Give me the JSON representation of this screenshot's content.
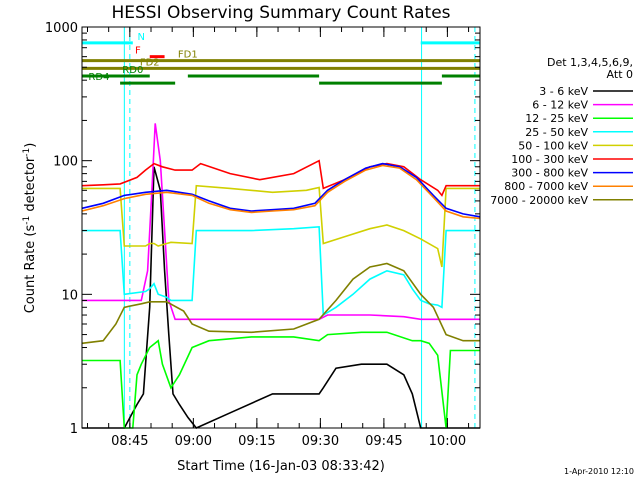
{
  "chart_data": {
    "type": "line",
    "title": "HESSI Observing Summary Count Rates",
    "xlabel": "Start Time (16-Jan-03 08:33:42)",
    "ylabel_main": "Count Rate (s",
    "ylabel_sup": "-1",
    "ylabel_mid": " detector",
    "ylabel_sup2": "-1",
    "ylabel_end": ")",
    "y_scale": "log",
    "ylim": [
      1,
      1000
    ],
    "xlim_minutes": [
      0,
      94
    ],
    "x_ticks": [
      {
        "minute": 11.3,
        "label": "08:45"
      },
      {
        "minute": 26.3,
        "label": "09:00"
      },
      {
        "minute": 41.3,
        "label": "09:15"
      },
      {
        "minute": 56.3,
        "label": "09:30"
      },
      {
        "minute": 71.3,
        "label": "09:45"
      },
      {
        "minute": 86.3,
        "label": "10:00"
      }
    ],
    "y_ticks": [
      {
        "value": 1,
        "label": "1"
      },
      {
        "value": 10,
        "label": "10"
      },
      {
        "value": 100,
        "label": "100"
      },
      {
        "value": 1000,
        "label": "1000"
      }
    ],
    "legend": {
      "header1": "Det 1,3,4,5,6,9,",
      "header2": "Att 0",
      "placement": "right"
    },
    "series": [
      {
        "name": "3 - 6 keV",
        "color": "#000000",
        "points": [
          [
            0,
            1
          ],
          [
            10,
            1
          ],
          [
            13,
            1.5
          ],
          [
            14.5,
            1.8
          ],
          [
            16,
            8
          ],
          [
            17,
            90
          ],
          [
            18.5,
            60
          ],
          [
            19.5,
            15
          ],
          [
            20.5,
            5
          ],
          [
            21.5,
            1.8
          ],
          [
            23,
            1.5
          ],
          [
            25,
            1.2
          ],
          [
            27,
            1
          ],
          [
            35,
            1.3
          ],
          [
            45,
            1.8
          ],
          [
            56,
            1.8
          ],
          [
            57,
            2
          ],
          [
            60,
            2.8
          ],
          [
            66,
            3
          ],
          [
            72,
            3
          ],
          [
            76,
            2.5
          ],
          [
            78,
            1.8
          ],
          [
            80,
            1
          ],
          [
            94,
            1
          ]
        ]
      },
      {
        "name": "6 - 12 keV",
        "color": "#ff00ff",
        "points": [
          [
            0,
            9
          ],
          [
            10,
            9
          ],
          [
            14,
            9
          ],
          [
            15.5,
            15
          ],
          [
            16.5,
            60
          ],
          [
            17.3,
            190
          ],
          [
            18.5,
            100
          ],
          [
            19.5,
            30
          ],
          [
            20.5,
            9
          ],
          [
            22,
            6.5
          ],
          [
            26,
            6.5
          ],
          [
            35,
            6.5
          ],
          [
            50,
            6.5
          ],
          [
            56,
            6.5
          ],
          [
            58,
            7
          ],
          [
            68,
            7
          ],
          [
            76,
            6.8
          ],
          [
            80,
            6.5
          ],
          [
            94,
            6.5
          ]
        ]
      },
      {
        "name": "12 - 25 keV",
        "color": "#00ff00",
        "points": [
          [
            0,
            3.2
          ],
          [
            9,
            3.2
          ],
          [
            10,
            1
          ],
          [
            12,
            1
          ],
          [
            13,
            2.5
          ],
          [
            14,
            3
          ],
          [
            16,
            4
          ],
          [
            18,
            4.5
          ],
          [
            19,
            3
          ],
          [
            21,
            2
          ],
          [
            23,
            2.5
          ],
          [
            26,
            4
          ],
          [
            30,
            4.5
          ],
          [
            40,
            4.8
          ],
          [
            50,
            4.8
          ],
          [
            56,
            4.5
          ],
          [
            58,
            5
          ],
          [
            66,
            5.2
          ],
          [
            72,
            5.2
          ],
          [
            78,
            4.5
          ],
          [
            80,
            4.5
          ],
          [
            82,
            4.3
          ],
          [
            84,
            3.5
          ],
          [
            86,
            1
          ],
          [
            87,
            3.8
          ],
          [
            94,
            3.8
          ]
        ]
      },
      {
        "name": "25 - 50 keV",
        "color": "#00ffff",
        "points": [
          [
            0,
            30
          ],
          [
            9,
            30
          ],
          [
            10,
            10
          ],
          [
            15,
            10.5
          ],
          [
            16,
            11
          ],
          [
            17,
            12
          ],
          [
            18,
            10
          ],
          [
            20,
            9.5
          ],
          [
            21,
            9
          ],
          [
            26,
            9
          ],
          [
            27,
            30
          ],
          [
            40,
            30
          ],
          [
            50,
            31
          ],
          [
            56,
            32
          ],
          [
            57,
            7
          ],
          [
            60,
            8
          ],
          [
            64,
            10
          ],
          [
            68,
            13
          ],
          [
            72,
            15
          ],
          [
            76,
            14
          ],
          [
            78,
            11
          ],
          [
            80,
            9
          ],
          [
            82,
            8.5
          ],
          [
            84,
            8.3
          ],
          [
            85,
            8
          ],
          [
            86,
            30
          ],
          [
            94,
            30
          ]
        ]
      },
      {
        "name": "50 - 100 keV",
        "color": "#d0d000",
        "points": [
          [
            0,
            62
          ],
          [
            9,
            62
          ],
          [
            10,
            23
          ],
          [
            15,
            23
          ],
          [
            16,
            24
          ],
          [
            17,
            24
          ],
          [
            18,
            23
          ],
          [
            20,
            24
          ],
          [
            21,
            24.5
          ],
          [
            26,
            24
          ],
          [
            27,
            65
          ],
          [
            35,
            62
          ],
          [
            45,
            58
          ],
          [
            53,
            60
          ],
          [
            56,
            63
          ],
          [
            57,
            24
          ],
          [
            62,
            27
          ],
          [
            68,
            31
          ],
          [
            72,
            33
          ],
          [
            76,
            30
          ],
          [
            80,
            26
          ],
          [
            84,
            22
          ],
          [
            85,
            16
          ],
          [
            86,
            62
          ],
          [
            94,
            62
          ]
        ]
      },
      {
        "name": "100 - 300 keV",
        "color": "#ff0000",
        "points": [
          [
            0,
            65
          ],
          [
            5,
            66
          ],
          [
            9,
            67
          ],
          [
            13,
            75
          ],
          [
            15,
            85
          ],
          [
            17,
            95
          ],
          [
            19,
            90
          ],
          [
            22,
            85
          ],
          [
            26,
            85
          ],
          [
            28,
            95
          ],
          [
            35,
            80
          ],
          [
            42,
            72
          ],
          [
            50,
            80
          ],
          [
            56,
            100
          ],
          [
            57,
            62
          ],
          [
            62,
            72
          ],
          [
            68,
            90
          ],
          [
            72,
            95
          ],
          [
            76,
            90
          ],
          [
            80,
            72
          ],
          [
            84,
            60
          ],
          [
            85,
            55
          ],
          [
            86,
            65
          ],
          [
            94,
            65
          ]
        ]
      },
      {
        "name": "300 - 800 keV",
        "color": "#0000ff",
        "points": [
          [
            0,
            44
          ],
          [
            5,
            48
          ],
          [
            10,
            55
          ],
          [
            15,
            58
          ],
          [
            20,
            60
          ],
          [
            26,
            56
          ],
          [
            30,
            50
          ],
          [
            35,
            44
          ],
          [
            40,
            42
          ],
          [
            45,
            43
          ],
          [
            50,
            44
          ],
          [
            55,
            48
          ],
          [
            58,
            60
          ],
          [
            62,
            72
          ],
          [
            67,
            88
          ],
          [
            71,
            95
          ],
          [
            75,
            90
          ],
          [
            79,
            75
          ],
          [
            83,
            55
          ],
          [
            86,
            44
          ],
          [
            90,
            40
          ],
          [
            94,
            38
          ]
        ]
      },
      {
        "name": "800 - 7000 keV",
        "color": "#ff8000",
        "points": [
          [
            0,
            42
          ],
          [
            5,
            46
          ],
          [
            10,
            52
          ],
          [
            15,
            56
          ],
          [
            20,
            58
          ],
          [
            26,
            55
          ],
          [
            30,
            48
          ],
          [
            35,
            43
          ],
          [
            40,
            41
          ],
          [
            45,
            42
          ],
          [
            50,
            43
          ],
          [
            55,
            46
          ],
          [
            58,
            58
          ],
          [
            62,
            70
          ],
          [
            67,
            85
          ],
          [
            71,
            92
          ],
          [
            75,
            88
          ],
          [
            79,
            72
          ],
          [
            83,
            53
          ],
          [
            86,
            42
          ],
          [
            90,
            38
          ],
          [
            94,
            37
          ]
        ]
      },
      {
        "name": "7000 - 20000 keV",
        "color": "#808000",
        "points": [
          [
            0,
            4.3
          ],
          [
            5,
            4.5
          ],
          [
            8,
            6
          ],
          [
            10,
            8
          ],
          [
            14,
            8.5
          ],
          [
            16,
            8.8
          ],
          [
            20,
            8.8
          ],
          [
            24,
            7.5
          ],
          [
            26,
            6
          ],
          [
            30,
            5.3
          ],
          [
            40,
            5.2
          ],
          [
            50,
            5.5
          ],
          [
            56,
            6.5
          ],
          [
            60,
            9
          ],
          [
            64,
            13
          ],
          [
            68,
            16
          ],
          [
            72,
            17
          ],
          [
            76,
            15
          ],
          [
            80,
            10
          ],
          [
            83,
            8
          ],
          [
            86,
            5
          ],
          [
            90,
            4.5
          ],
          [
            94,
            4.5
          ]
        ]
      }
    ],
    "vertical_lines": [
      {
        "minute": 11.3,
        "style": "dashed",
        "color": "#00ffff"
      },
      {
        "minute": 80.2,
        "style": "solid",
        "color": "#00ffff"
      },
      {
        "minute": 92.8,
        "style": "dashed",
        "color": "#00ffff"
      },
      {
        "minute": 10.0,
        "style": "solid",
        "color": "#00ffff"
      }
    ],
    "flag_bars": [
      {
        "label": "N",
        "color": "#00ffff",
        "y_value": 760,
        "segments": [
          [
            0,
            12
          ],
          [
            80,
            94
          ]
        ],
        "label_minute": 14
      },
      {
        "label": "F",
        "color": "#ff0000",
        "y_value": 600,
        "segments": [
          [
            16,
            19.5
          ]
        ],
        "label_minute": 13.2
      },
      {
        "label": "FD1",
        "color": "#808000",
        "y_value": 560,
        "segments": [
          [
            0,
            94
          ]
        ],
        "label_minute": 25
      },
      {
        "label": "FD2",
        "color": "#808000",
        "y_value": 490,
        "segments": [
          [
            0,
            94
          ]
        ],
        "label_minute": 16
      },
      {
        "label": "RD0",
        "color": "#008000",
        "y_value": 430,
        "segments": [
          [
            0,
            16
          ],
          [
            25,
            56
          ],
          [
            85,
            94
          ]
        ],
        "label_minute": 12
      },
      {
        "label": "RD4",
        "color": "#008000",
        "y_value": 380,
        "segments": [
          [
            9,
            22
          ],
          [
            56,
            85
          ]
        ],
        "label_minute": 4
      }
    ]
  },
  "footer": {
    "date_stamp": "1-Apr-2010 12:10"
  }
}
